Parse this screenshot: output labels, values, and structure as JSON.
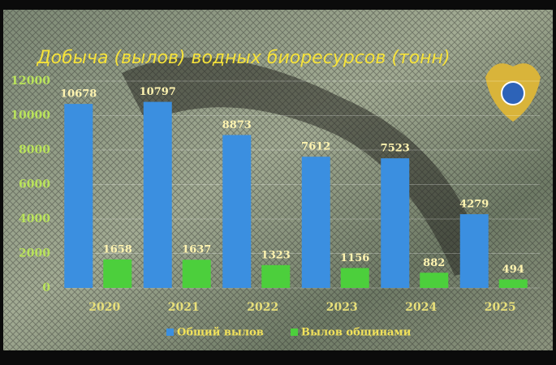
{
  "chart_data": {
    "type": "bar",
    "title": "Добыча (вылов) водных биоресурсов (тонн)",
    "categories": [
      "2020",
      "2021",
      "2022",
      "2023",
      "2024",
      "2025"
    ],
    "series": [
      {
        "name": "Общий вылов",
        "color": "#3b8fe0",
        "values": [
          10678,
          10797,
          8873,
          7612,
          7523,
          4279
        ]
      },
      {
        "name": "Вылов общинами",
        "color": "#4ccf3c",
        "values": [
          1658,
          1637,
          1323,
          1156,
          882,
          494
        ]
      }
    ],
    "ylim": [
      0,
      12000
    ],
    "yticks": [
      0,
      2000,
      4000,
      6000,
      8000,
      10000,
      12000
    ],
    "grid": true,
    "legend": "bottom"
  }
}
